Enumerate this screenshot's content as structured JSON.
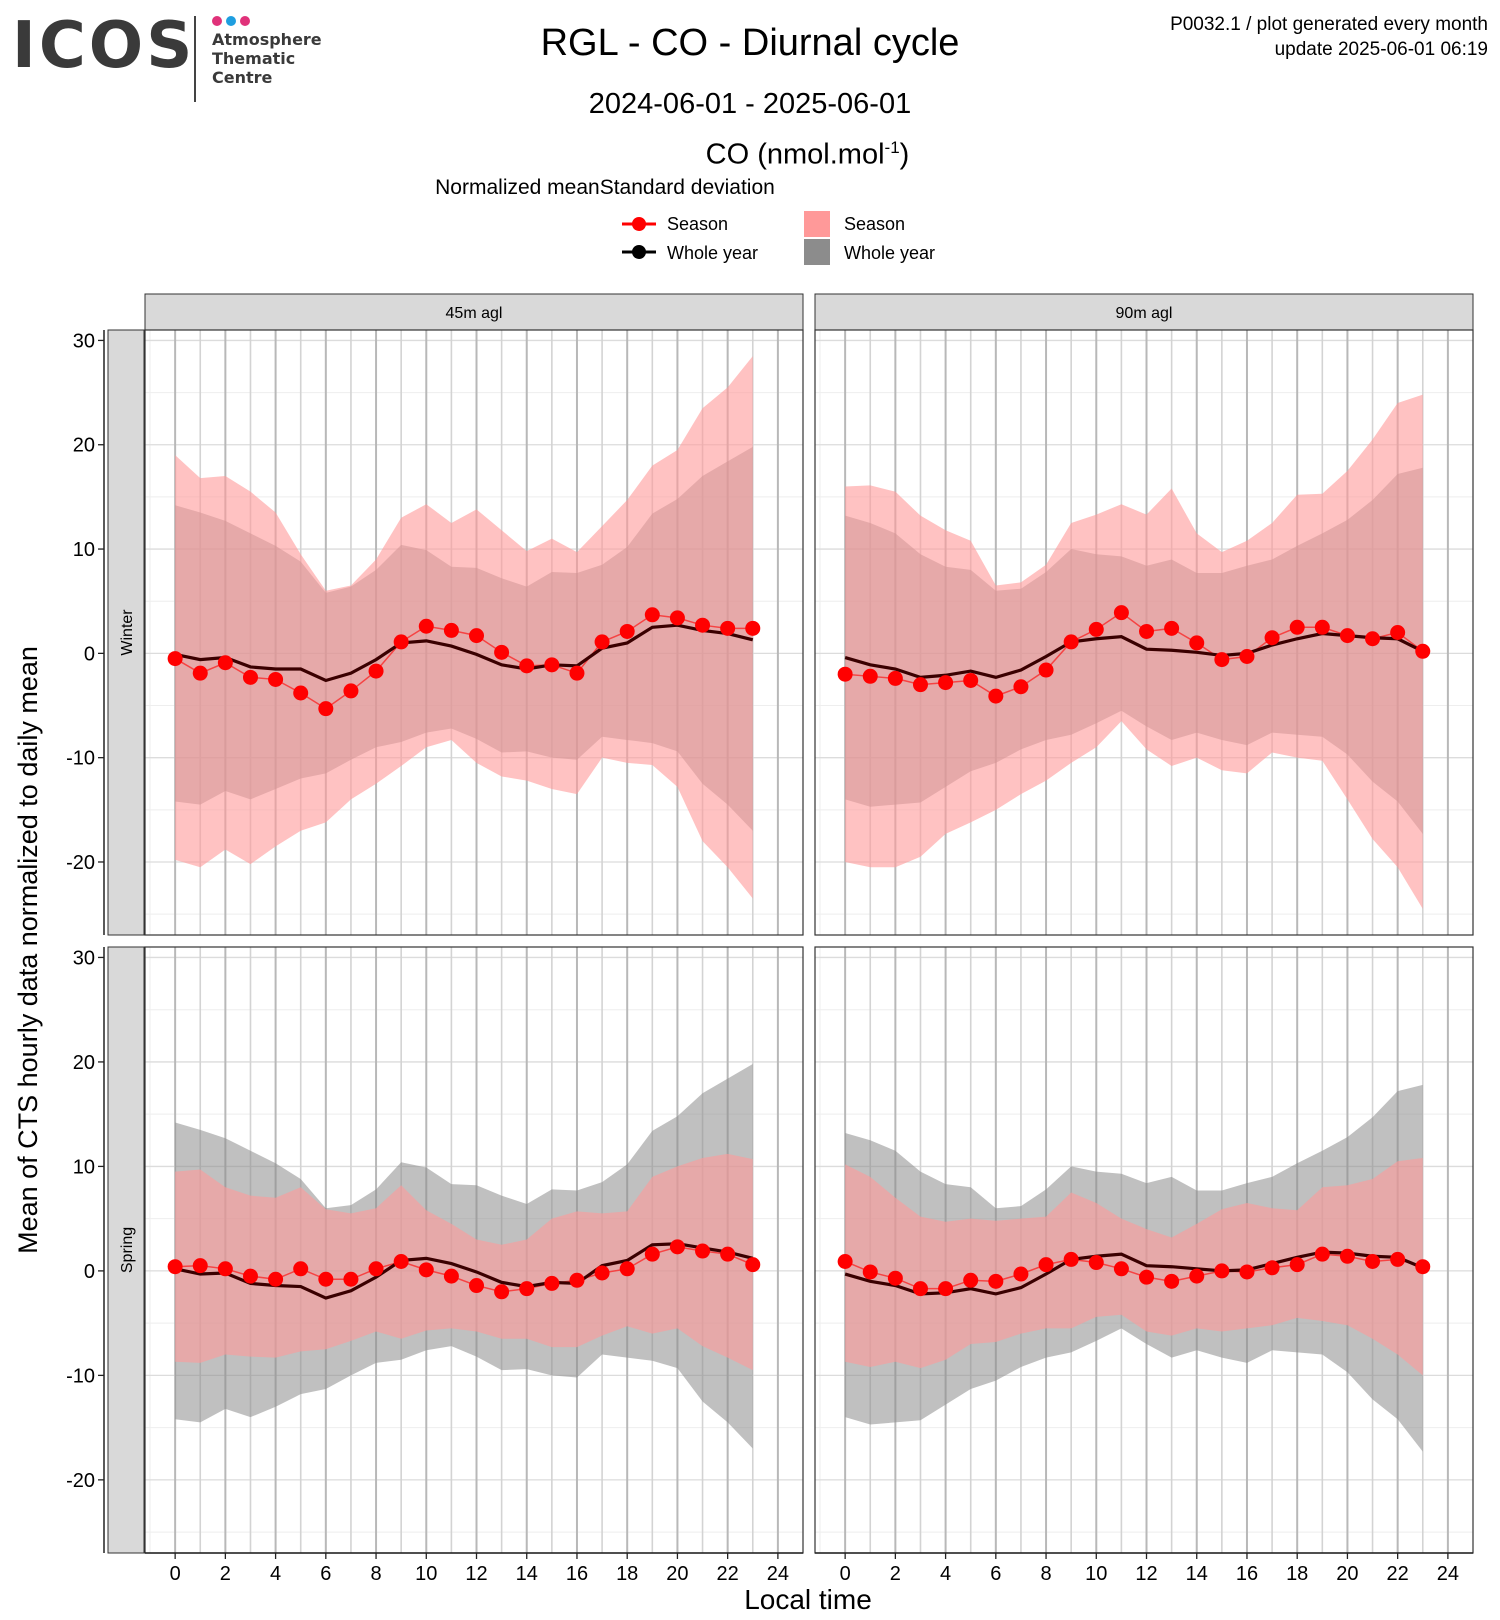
{
  "header": {
    "logo_text": "ICOS",
    "logo_subtitle": [
      "Atmosphere",
      "Thematic",
      "Centre"
    ],
    "logo_dot_colors": [
      "#e0327a",
      "#1e9ee0",
      "#e0327a"
    ],
    "title": "RGL - CO - Diurnal cycle",
    "subtitle": "2024-06-01 - 2025-06-01",
    "meta_line1": "P0032.1 / plot generated every month",
    "meta_line2": "update  2025-06-01 06:19",
    "unit_main": "CO (nmol.mol",
    "unit_sup": "-1",
    "unit_close": ")"
  },
  "legend": {
    "heading": "Normalized meanStandard deviation",
    "mean_entries": [
      "Season",
      "Whole year"
    ],
    "sd_entries": [
      "Season",
      "Whole year"
    ],
    "colors": {
      "season": "#ff0000",
      "whole_year": "#000000",
      "season_band": "#ff9999",
      "whole_year_band": "#8c8c8c"
    }
  },
  "chart_data": {
    "type": "line",
    "xlabel": "Local time",
    "ylabel": "Mean of CTS hourly data normalized to daily mean",
    "xlim": [
      -1.2,
      25
    ],
    "ylim": [
      -27,
      31
    ],
    "x_ticks": [
      0,
      2,
      4,
      6,
      8,
      10,
      12,
      14,
      16,
      18,
      20,
      22,
      24
    ],
    "y_ticks": [
      30,
      20,
      10,
      0,
      -10,
      -20
    ],
    "grid": true,
    "legend_position": "top",
    "column_strips": [
      "45m agl",
      "90m agl"
    ],
    "row_strips": [
      "Winter",
      "Spring"
    ],
    "x": [
      0,
      1,
      2,
      3,
      4,
      5,
      6,
      7,
      8,
      9,
      10,
      11,
      12,
      13,
      14,
      15,
      16,
      17,
      18,
      19,
      20,
      21,
      22,
      23
    ],
    "panels": [
      {
        "height": "45m agl",
        "season": "Winter",
        "season_mean": [
          -0.5,
          -1.9,
          -0.9,
          -2.3,
          -2.5,
          -3.8,
          -5.3,
          -3.6,
          -1.7,
          1.1,
          2.6,
          2.2,
          1.7,
          0.1,
          -1.2,
          -1.1,
          -1.9,
          1.1,
          2.1,
          3.7,
          3.4,
          2.7,
          2.4,
          2.4
        ],
        "year_mean": [
          -0.1,
          -0.6,
          -0.4,
          -1.3,
          -1.5,
          -1.5,
          -2.6,
          -1.9,
          -0.6,
          1.0,
          1.2,
          0.7,
          -0.1,
          -1.1,
          -1.5,
          -1.1,
          -1.2,
          0.5,
          1.0,
          2.5,
          2.7,
          2.2,
          1.9,
          1.3
        ],
        "season_sd_upper": [
          19.0,
          16.8,
          17.0,
          15.5,
          13.5,
          9.5,
          6.0,
          6.5,
          9.0,
          13.0,
          14.3,
          12.5,
          13.8,
          11.8,
          9.8,
          11.0,
          9.7,
          12.2,
          14.7,
          18.0,
          19.5,
          23.5,
          25.5,
          28.5
        ],
        "season_sd_lower": [
          -19.8,
          -20.5,
          -18.8,
          -20.2,
          -18.5,
          -17.0,
          -16.2,
          -14.0,
          -12.5,
          -10.8,
          -9.0,
          -8.3,
          -10.5,
          -11.8,
          -12.2,
          -13.0,
          -13.5,
          -10.0,
          -10.5,
          -10.7,
          -12.8,
          -18.0,
          -20.5,
          -23.5
        ],
        "year_sd_upper": [
          14.2,
          13.5,
          12.7,
          11.5,
          10.3,
          8.8,
          5.8,
          6.4,
          8.0,
          10.4,
          9.9,
          8.3,
          8.2,
          7.2,
          6.4,
          7.8,
          7.7,
          8.5,
          10.2,
          13.4,
          14.8,
          17.0,
          18.4,
          19.8
        ],
        "year_sd_lower": [
          -14.2,
          -14.5,
          -13.2,
          -14.0,
          -13.0,
          -12.0,
          -11.5,
          -10.2,
          -9.0,
          -8.5,
          -7.6,
          -7.2,
          -8.2,
          -9.5,
          -9.4,
          -10.0,
          -10.2,
          -8.0,
          -8.3,
          -8.6,
          -9.4,
          -12.5,
          -14.5,
          -17.0
        ]
      },
      {
        "height": "90m agl",
        "season": "Winter",
        "season_mean": [
          -2.0,
          -2.2,
          -2.4,
          -3.0,
          -2.8,
          -2.6,
          -4.1,
          -3.2,
          -1.6,
          1.1,
          2.3,
          3.9,
          2.1,
          2.4,
          1.0,
          -0.6,
          -0.3,
          1.5,
          2.5,
          2.5,
          1.7,
          1.4,
          2.0,
          0.2
        ],
        "year_mean": [
          -0.4,
          -1.1,
          -1.5,
          -2.3,
          -2.1,
          -1.7,
          -2.3,
          -1.6,
          -0.3,
          1.1,
          1.4,
          1.6,
          0.4,
          0.3,
          0.1,
          -0.2,
          0.0,
          0.8,
          1.4,
          1.9,
          1.7,
          1.5,
          1.4,
          0.2
        ],
        "season_sd_upper": [
          16.0,
          16.1,
          15.5,
          13.2,
          11.8,
          10.8,
          6.5,
          6.8,
          8.5,
          12.5,
          13.3,
          14.3,
          13.3,
          15.8,
          11.5,
          9.7,
          10.8,
          12.5,
          15.2,
          15.3,
          17.5,
          20.5,
          24.0,
          24.8
        ],
        "season_sd_lower": [
          -20.0,
          -20.5,
          -20.5,
          -19.5,
          -17.3,
          -16.2,
          -15.0,
          -13.5,
          -12.2,
          -10.5,
          -9.0,
          -6.5,
          -9.2,
          -10.8,
          -10.0,
          -11.2,
          -11.5,
          -9.5,
          -10.0,
          -10.3,
          -14.0,
          -17.8,
          -20.5,
          -24.5
        ],
        "year_sd_upper": [
          13.2,
          12.5,
          11.5,
          9.5,
          8.3,
          8.0,
          6.0,
          6.2,
          7.8,
          10.0,
          9.5,
          9.3,
          8.4,
          9.0,
          7.7,
          7.7,
          8.4,
          9.0,
          10.3,
          11.5,
          12.8,
          14.7,
          17.2,
          17.8
        ],
        "year_sd_lower": [
          -14.0,
          -14.7,
          -14.5,
          -14.3,
          -12.8,
          -11.3,
          -10.5,
          -9.2,
          -8.3,
          -7.8,
          -6.7,
          -5.5,
          -7.0,
          -8.3,
          -7.6,
          -8.3,
          -8.8,
          -7.6,
          -7.8,
          -8.0,
          -9.7,
          -12.3,
          -14.2,
          -17.3
        ]
      },
      {
        "height": "45m agl",
        "season": "Spring",
        "season_mean": [
          0.4,
          0.5,
          0.2,
          -0.5,
          -0.8,
          0.2,
          -0.8,
          -0.8,
          0.2,
          0.9,
          0.1,
          -0.5,
          -1.4,
          -2.0,
          -1.7,
          -1.2,
          -0.9,
          -0.2,
          0.2,
          1.6,
          2.3,
          1.9,
          1.6,
          0.6
        ],
        "year_mean": [
          0.2,
          -0.3,
          -0.2,
          -1.2,
          -1.4,
          -1.5,
          -2.6,
          -1.9,
          -0.6,
          1.0,
          1.2,
          0.7,
          -0.1,
          -1.1,
          -1.5,
          -1.1,
          -1.2,
          0.5,
          1.0,
          2.5,
          2.6,
          2.2,
          1.8,
          1.2
        ],
        "season_sd_upper": [
          9.5,
          9.7,
          8.0,
          7.2,
          7.0,
          8.0,
          5.9,
          5.5,
          6.0,
          8.2,
          5.8,
          4.5,
          3.0,
          2.5,
          3.0,
          5.0,
          5.7,
          5.5,
          5.7,
          9.0,
          10.0,
          10.8,
          11.2,
          10.7
        ],
        "season_sd_lower": [
          -8.7,
          -8.8,
          -8.0,
          -8.2,
          -8.3,
          -7.7,
          -7.5,
          -6.7,
          -5.8,
          -6.5,
          -5.7,
          -5.5,
          -5.8,
          -6.5,
          -6.5,
          -7.3,
          -7.3,
          -6.2,
          -5.3,
          -6.0,
          -5.5,
          -7.2,
          -8.3,
          -9.5
        ],
        "year_sd_upper": [
          14.2,
          13.5,
          12.7,
          11.5,
          10.3,
          8.8,
          6.0,
          6.3,
          7.8,
          10.4,
          9.9,
          8.3,
          8.2,
          7.2,
          6.4,
          7.8,
          7.7,
          8.5,
          10.2,
          13.4,
          14.8,
          17.0,
          18.4,
          19.8
        ],
        "year_sd_lower": [
          -14.2,
          -14.5,
          -13.2,
          -14.0,
          -13.0,
          -11.8,
          -11.3,
          -10.0,
          -8.8,
          -8.5,
          -7.6,
          -7.2,
          -8.2,
          -9.5,
          -9.4,
          -10.0,
          -10.2,
          -8.0,
          -8.3,
          -8.6,
          -9.3,
          -12.5,
          -14.5,
          -17.0
        ]
      },
      {
        "height": "90m agl",
        "season": "Spring",
        "season_mean": [
          0.9,
          -0.1,
          -0.7,
          -1.7,
          -1.7,
          -0.9,
          -1.0,
          -0.3,
          0.6,
          1.1,
          0.8,
          0.2,
          -0.6,
          -1.0,
          -0.5,
          0.0,
          -0.1,
          0.3,
          0.6,
          1.6,
          1.4,
          0.9,
          1.1,
          0.4
        ],
        "year_mean": [
          -0.3,
          -1.0,
          -1.4,
          -2.2,
          -2.1,
          -1.7,
          -2.2,
          -1.6,
          -0.3,
          1.1,
          1.4,
          1.6,
          0.5,
          0.4,
          0.2,
          0.0,
          0.1,
          0.7,
          1.3,
          1.8,
          1.7,
          1.4,
          1.3,
          0.3
        ],
        "season_sd_upper": [
          10.2,
          9.0,
          7.0,
          5.2,
          4.7,
          5.0,
          4.8,
          5.0,
          5.2,
          7.5,
          6.5,
          5.0,
          4.0,
          3.2,
          4.5,
          5.9,
          6.5,
          6.0,
          5.8,
          8.0,
          8.2,
          8.8,
          10.5,
          10.8
        ],
        "season_sd_lower": [
          -8.7,
          -9.2,
          -8.7,
          -9.3,
          -8.5,
          -7.0,
          -6.8,
          -6.0,
          -5.5,
          -5.5,
          -4.4,
          -4.2,
          -5.8,
          -6.2,
          -5.5,
          -5.8,
          -5.5,
          -5.2,
          -4.5,
          -4.8,
          -5.2,
          -6.5,
          -8.0,
          -10.0
        ],
        "year_sd_upper": [
          13.2,
          12.5,
          11.5,
          9.5,
          8.3,
          8.0,
          6.0,
          6.2,
          7.8,
          10.0,
          9.5,
          9.3,
          8.4,
          9.0,
          7.7,
          7.7,
          8.4,
          9.0,
          10.3,
          11.5,
          12.8,
          14.7,
          17.2,
          17.8
        ],
        "year_sd_lower": [
          -14.0,
          -14.7,
          -14.5,
          -14.3,
          -12.8,
          -11.3,
          -10.5,
          -9.2,
          -8.3,
          -7.8,
          -6.7,
          -5.5,
          -7.0,
          -8.3,
          -7.6,
          -8.3,
          -8.8,
          -7.6,
          -7.8,
          -8.0,
          -9.7,
          -12.3,
          -14.2,
          -17.3
        ]
      }
    ]
  }
}
